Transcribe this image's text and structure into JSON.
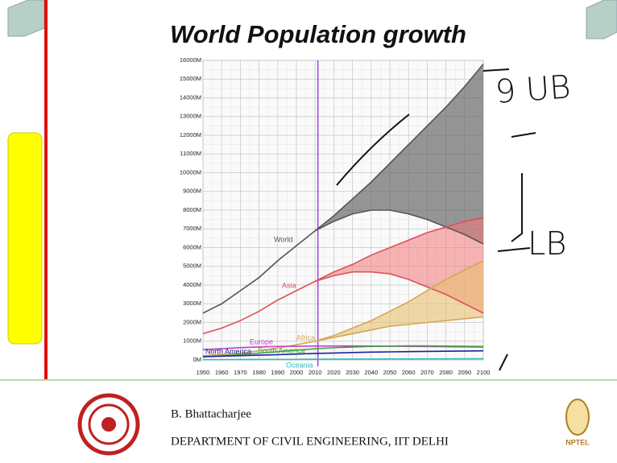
{
  "slide": {
    "title": "World Population growth",
    "author": "B. Bhattacharjee",
    "department": "DEPARTMENT OF CIVIL ENGINEERING, IIT DELHI",
    "logo_text": "NPTEL",
    "annotations": [
      "9 UB",
      "LB"
    ]
  },
  "chart_data": {
    "type": "line",
    "x": [
      1950,
      1960,
      1970,
      1980,
      1990,
      2000,
      2010,
      2020,
      2030,
      2040,
      2050,
      2060,
      2070,
      2080,
      2090,
      2100
    ],
    "xlim": [
      1950,
      2100
    ],
    "xticks": [
      1950,
      1960,
      1970,
      1980,
      1990,
      2000,
      2010,
      2020,
      2030,
      2040,
      2050,
      2060,
      2070,
      2080,
      2090,
      2100
    ],
    "ylim": [
      0,
      16000
    ],
    "yticks": [
      {
        "value": 0,
        "label": "0M"
      },
      {
        "value": 1000,
        "label": "1000M"
      },
      {
        "value": 2000,
        "label": "2000M"
      },
      {
        "value": 3000,
        "label": "3000M"
      },
      {
        "value": 4000,
        "label": "4000M"
      },
      {
        "value": 5000,
        "label": "5000M"
      },
      {
        "value": 6000,
        "label": "6000M"
      },
      {
        "value": 7000,
        "label": "7000M"
      },
      {
        "value": 8000,
        "label": "8000M"
      },
      {
        "value": 9000,
        "label": "9000M"
      },
      {
        "value": 10000,
        "label": "10000M"
      },
      {
        "value": 11000,
        "label": "11000M"
      },
      {
        "value": 12000,
        "label": "12000M"
      },
      {
        "value": 13000,
        "label": "13000M"
      },
      {
        "value": 14000,
        "label": "14000M"
      },
      {
        "value": 15000,
        "label": "15000M"
      },
      {
        "value": 16000,
        "label": "16000M"
      }
    ],
    "grid": true,
    "series": [
      {
        "name": "World",
        "color": "#555555",
        "values": [
          2500,
          3000,
          3700,
          4400,
          5300,
          6100,
          6900,
          null,
          null,
          null,
          null,
          null,
          null,
          null,
          null,
          null
        ]
      },
      {
        "color": "#555555",
        "values": [
          null,
          null,
          null,
          null,
          null,
          null,
          6900,
          7700,
          8600,
          9500,
          10500,
          11500,
          12500,
          13500,
          14600,
          15800
        ]
      },
      {
        "color": "#555555",
        "values": [
          null,
          null,
          null,
          null,
          null,
          null,
          6900,
          7400,
          7800,
          8000,
          8000,
          7800,
          7500,
          7100,
          6700,
          6200
        ]
      },
      {
        "name": "Asia",
        "color": "#e0505a",
        "values": [
          1400,
          1700,
          2100,
          2600,
          3200,
          3700,
          4200,
          null,
          null,
          null,
          null,
          null,
          null,
          null,
          null,
          null
        ]
      },
      {
        "color": "#e0505a",
        "values": [
          null,
          null,
          null,
          null,
          null,
          null,
          4200,
          4700,
          5100,
          5600,
          6000,
          6400,
          6800,
          7100,
          7400,
          7600
        ]
      },
      {
        "color": "#e0505a",
        "values": [
          null,
          null,
          null,
          null,
          null,
          null,
          4200,
          4500,
          4700,
          4700,
          4600,
          4300,
          3900,
          3500,
          3000,
          2500
        ]
      },
      {
        "name": "Africa",
        "color": "#d4a850",
        "values": [
          230,
          290,
          370,
          480,
          630,
          810,
          1000,
          null,
          null,
          null,
          null,
          null,
          null,
          null,
          null,
          null
        ]
      },
      {
        "color": "#d4a850",
        "values": [
          null,
          null,
          null,
          null,
          null,
          null,
          1000,
          1300,
          1700,
          2100,
          2600,
          3100,
          3700,
          4300,
          4800,
          5300
        ]
      },
      {
        "color": "#d4a850",
        "values": [
          null,
          null,
          null,
          null,
          null,
          null,
          1000,
          1200,
          1400,
          1600,
          1800,
          1900,
          2000,
          2100,
          2200,
          2300
        ]
      },
      {
        "name": "Europe",
        "color": "#c040c0",
        "values": [
          550,
          600,
          660,
          690,
          720,
          730,
          740,
          745,
          745,
          740,
          735,
          725,
          715,
          705,
          695,
          690
        ]
      },
      {
        "name": "South America",
        "color": "#40a040",
        "values": [
          170,
          220,
          290,
          360,
          440,
          520,
          600,
          650,
          690,
          720,
          740,
          750,
          750,
          740,
          730,
          720
        ]
      },
      {
        "name": "North America",
        "color": "#2020a0",
        "values": [
          170,
          200,
          230,
          255,
          280,
          315,
          345,
          370,
          395,
          415,
          430,
          445,
          455,
          465,
          475,
          485
        ]
      },
      {
        "name": "Oceania",
        "color": "#30b8c0",
        "values": [
          13,
          16,
          20,
          23,
          27,
          31,
          37,
          40,
          44,
          47,
          50,
          53,
          56,
          58,
          60,
          62
        ]
      }
    ]
  }
}
